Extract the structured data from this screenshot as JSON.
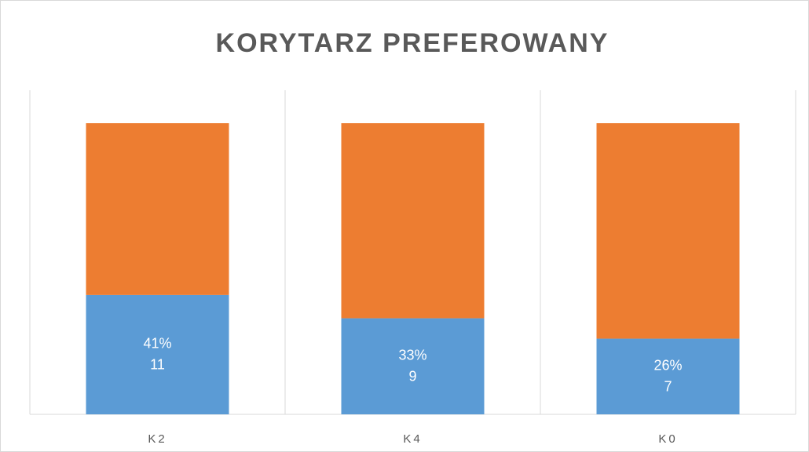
{
  "chart_data": {
    "type": "stacked_bar",
    "title": "KORYTARZ PREFEROWANY",
    "categories": [
      "K2",
      "K4",
      "K0"
    ],
    "series": [
      {
        "color": "#5b9bd5",
        "values": [
          41,
          33,
          26
        ],
        "value_labels": [
          "41%",
          "33%",
          "26%"
        ],
        "counts": [
          11,
          9,
          7
        ]
      },
      {
        "color": "#ed7d31",
        "values": [
          59,
          67,
          74
        ]
      }
    ],
    "ylim": [
      0,
      100
    ],
    "grid": true
  }
}
